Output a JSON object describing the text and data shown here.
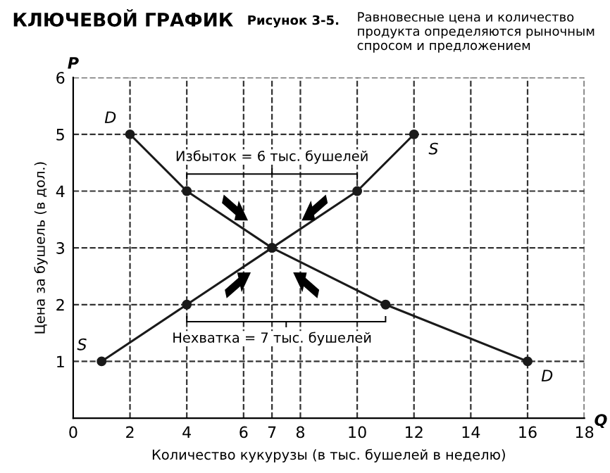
{
  "chart_data": {
    "type": "line",
    "title": "КЛЮЧЕВОЙ ГРАФИК",
    "subtitle": "Рисунок 3-5.",
    "xlabel": "Количество кукурузы (в тыс. бушелей в неделю)",
    "ylabel": "Цена за бушель (в дол.)",
    "annotations": [
      "Равновесные цена и количество продукта определяются рыночным спросом и предложением",
      "P",
      "Q",
      "Избыток = 6 тыс. бушелей",
      "Нехватка = 7 тыс. бушелей"
    ],
    "series": [
      {
        "name": "D",
        "color": "#1a1a1a",
        "x": [
          2,
          4,
          7,
          11,
          16
        ],
        "values": [
          5,
          4,
          3,
          2,
          1
        ]
      },
      {
        "name": "S",
        "color": "#1a1a1a",
        "x": [
          1,
          4,
          7,
          10,
          12
        ],
        "values": [
          1,
          2,
          3,
          4,
          5
        ]
      }
    ],
    "xlim": [
      0,
      18
    ],
    "ylim": [
      0,
      6
    ],
    "xticks": [
      0,
      2,
      4,
      6,
      7,
      8,
      10,
      12,
      14,
      16,
      18
    ],
    "yticks": [
      1,
      2,
      3,
      4,
      5,
      6
    ],
    "grid": true,
    "marker": "circle",
    "line_style": "solid"
  }
}
